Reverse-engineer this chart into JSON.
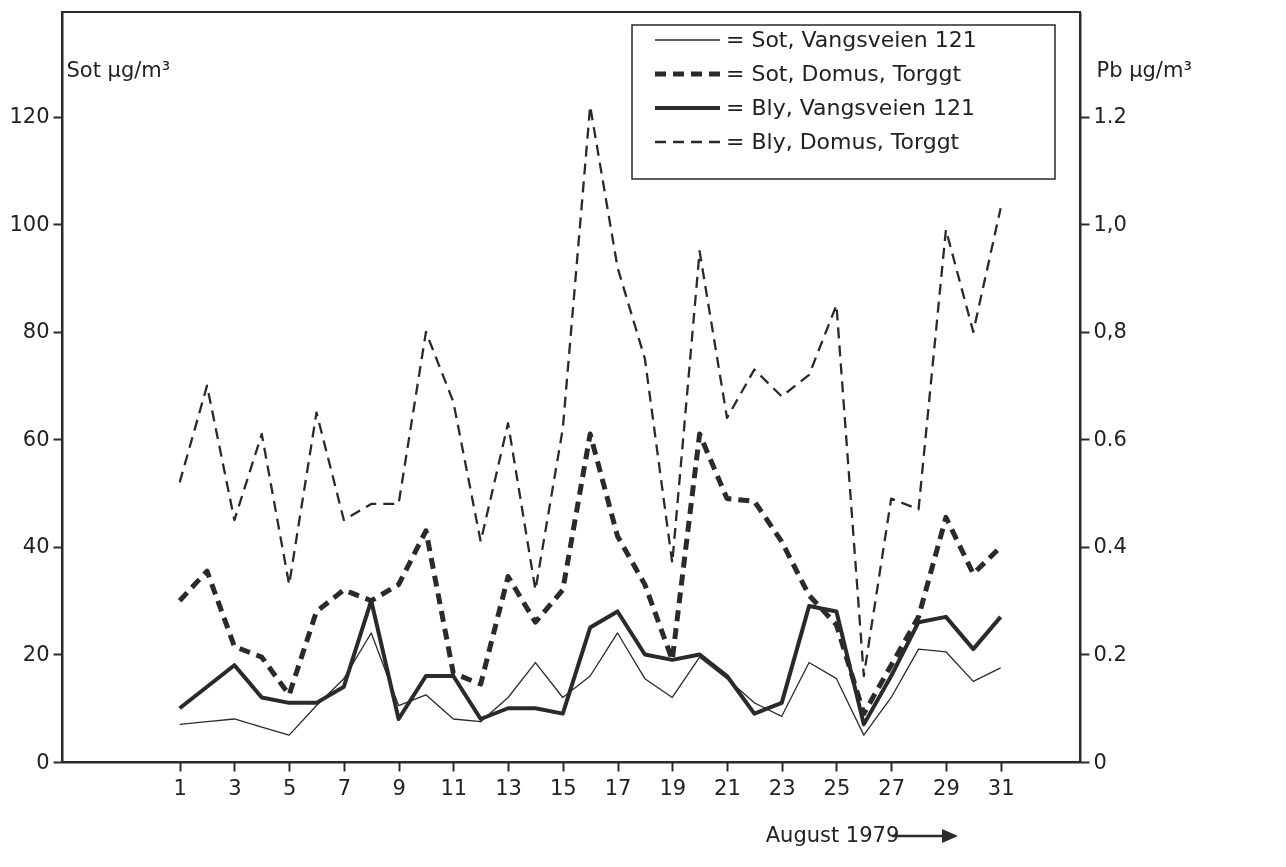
{
  "chart_data": {
    "type": "line",
    "xlabel": "August 1979",
    "ylabel": "Sot µg/m³",
    "y2label": "Pb µg/m³",
    "x": [
      1,
      2,
      3,
      4,
      5,
      6,
      7,
      8,
      9,
      10,
      11,
      12,
      13,
      14,
      15,
      16,
      17,
      18,
      19,
      20,
      21,
      22,
      23,
      24,
      25,
      26,
      27,
      28,
      29,
      30,
      31
    ],
    "xlim": [
      -3.3,
      33.9
    ],
    "xticks": [
      1,
      3,
      5,
      7,
      9,
      11,
      13,
      15,
      17,
      19,
      21,
      23,
      25,
      27,
      29,
      31
    ],
    "ylim": [
      0,
      139.5
    ],
    "yticks": [
      0,
      20,
      40,
      60,
      80,
      100,
      120
    ],
    "y2lim": [
      0,
      1.395
    ],
    "y2ticks": [
      0,
      0.2,
      0.4,
      0.6,
      {
        "value": 0.8,
        "label": "0,8"
      },
      {
        "value": 1.0,
        "label": "1,0"
      },
      1.2
    ],
    "grid": false,
    "legend": "top right",
    "marker": "none",
    "series": [
      {
        "name": "= Sot, Vangsveien 121",
        "color": "#2a2a2a",
        "line_style": "solid",
        "values": [
          7,
          7.5,
          8,
          6.5,
          5,
          10.5,
          15.5,
          24,
          10.5,
          12.5,
          8,
          7.5,
          12,
          18.5,
          12,
          16,
          24,
          15.5,
          12,
          19.5,
          15.5,
          11,
          8.5,
          18.5,
          15.5,
          5,
          12,
          21,
          20.5,
          15,
          17.5
        ]
      },
      {
        "name": "= Sot, Domus, Torggt",
        "color": "#2a2a2a",
        "line_style": "dashed",
        "values": [
          30,
          35.5,
          21.5,
          19.5,
          12.5,
          28,
          32,
          30,
          33,
          43,
          16.5,
          14.5,
          34.5,
          26,
          32,
          61,
          42,
          33,
          19,
          61,
          49,
          48.5,
          41,
          31,
          25.5,
          9,
          18,
          27,
          45.5,
          35,
          40
        ]
      },
      {
        "name": "= Bly, Vangsveien 121",
        "color": "#2a2a2a",
        "line_style": "solid",
        "axis": "y2",
        "values": [
          0.1,
          0.14,
          0.18,
          0.12,
          0.11,
          0.11,
          0.14,
          0.3,
          0.08,
          0.16,
          0.16,
          0.08,
          0.1,
          0.1,
          0.09,
          0.25,
          0.28,
          0.2,
          0.19,
          0.2,
          0.16,
          0.09,
          0.11,
          0.29,
          0.28,
          0.07,
          0.16,
          0.26,
          0.27,
          0.21,
          0.27
        ]
      },
      {
        "name": "= Bly, Domus, Torggt",
        "color": "#2a2a2a",
        "line_style": "dashed",
        "axis": "y2",
        "values": [
          0.52,
          0.7,
          0.45,
          0.61,
          0.33,
          0.65,
          0.45,
          0.48,
          0.48,
          0.8,
          0.67,
          0.41,
          0.63,
          0.32,
          0.62,
          1.22,
          0.92,
          0.75,
          0.37,
          0.95,
          0.64,
          0.73,
          0.68,
          0.72,
          0.85,
          0.16,
          0.49,
          0.47,
          0.99,
          0.8,
          1.03
        ]
      }
    ]
  }
}
